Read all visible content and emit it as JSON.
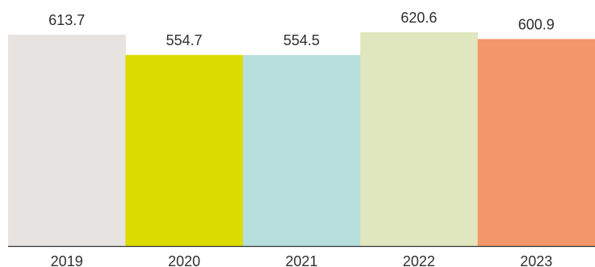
{
  "chart_data": {
    "type": "bar",
    "categories": [
      "2019",
      "2020",
      "2021",
      "2022",
      "2023"
    ],
    "values": [
      613.7,
      554.7,
      554.5,
      620.6,
      600.9
    ],
    "value_labels": [
      "613.7",
      "554.7",
      "554.5",
      "620.6",
      "600.9"
    ],
    "colors": [
      "#e7e3e1",
      "#dbdb00",
      "#b5dedc",
      "#e0e7bf",
      "#f29769"
    ],
    "title": "",
    "xlabel": "",
    "ylabel": "",
    "ylim": [
      0,
      640
    ],
    "grid": false,
    "legend": "none"
  }
}
